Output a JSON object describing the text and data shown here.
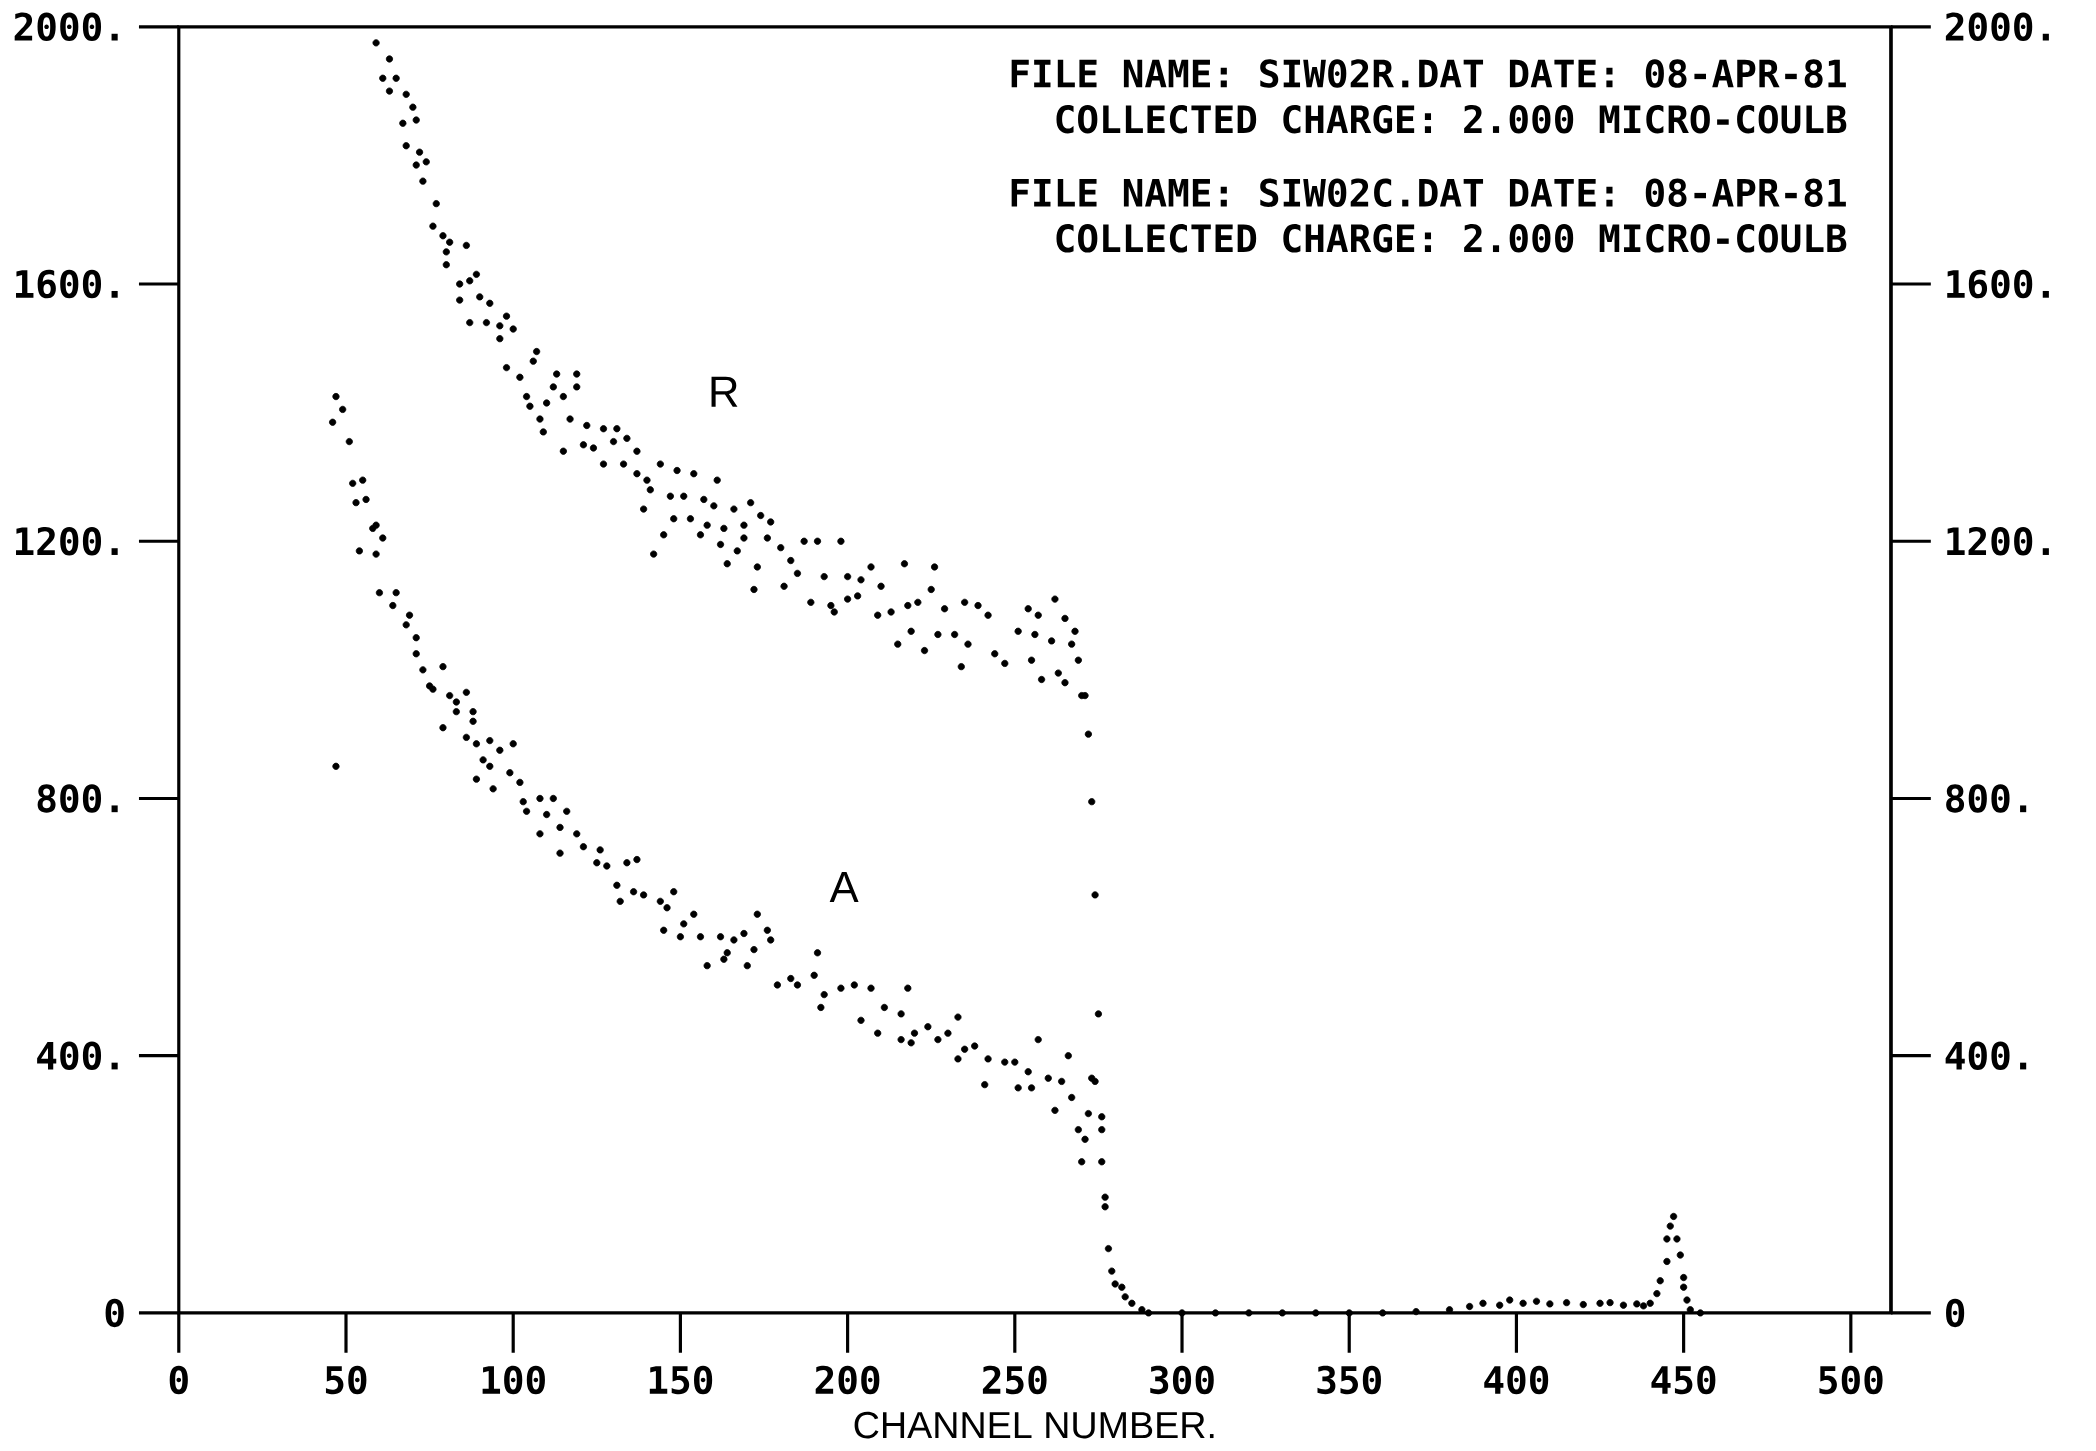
{
  "chart_data": {
    "type": "scatter",
    "xlabel": "CHANNEL NUMBER.",
    "xlim": [
      0,
      512
    ],
    "xticks": [
      0,
      50,
      100,
      150,
      200,
      250,
      300,
      350,
      400,
      450,
      500
    ],
    "ylim": [
      0,
      2000
    ],
    "yticks": [
      0,
      {
        "value": 400,
        "label": "400."
      },
      {
        "value": 800,
        "label": "800."
      },
      {
        "value": 1200,
        "label": "1200."
      },
      {
        "value": 1600,
        "label": "1600."
      },
      {
        "value": 2000,
        "label": "2000."
      }
    ],
    "y2lim": [
      0,
      2000
    ],
    "y2ticks": [
      0,
      {
        "value": 400,
        "label": "400."
      },
      {
        "value": 800,
        "label": "800."
      },
      {
        "value": 1200,
        "label": "1200."
      },
      {
        "value": 1600,
        "label": "1600."
      },
      {
        "value": 2000,
        "label": "2000."
      }
    ],
    "marker": "circle",
    "series": [
      {
        "name": "R",
        "color": "#000000",
        "x": [
          59,
          61,
          63,
          63,
          65,
          67,
          68,
          68,
          70,
          71,
          71,
          72,
          73,
          74,
          76,
          77,
          79,
          80,
          80,
          81,
          84,
          84,
          86,
          87,
          87,
          89,
          90,
          92,
          93,
          96,
          96,
          98,
          98,
          100,
          102,
          104,
          105,
          106,
          107,
          108,
          109,
          110,
          112,
          113,
          115,
          115,
          117,
          119,
          119,
          121,
          122,
          124,
          127,
          127,
          130,
          131,
          133,
          134,
          137,
          137,
          139,
          140,
          141,
          142,
          144,
          145,
          147,
          148,
          149,
          151,
          153,
          154,
          156,
          157,
          158,
          160,
          161,
          162,
          163,
          164,
          166,
          167,
          169,
          169,
          171,
          172,
          173,
          174,
          176,
          177,
          180,
          181,
          183,
          185,
          187,
          189,
          191,
          193,
          195,
          196,
          198,
          200,
          200,
          203,
          204,
          207,
          209,
          210,
          213,
          215,
          217,
          218,
          219,
          221,
          223,
          225,
          226,
          227,
          229,
          232,
          234,
          235,
          236,
          239,
          242,
          244,
          247,
          251,
          254,
          255,
          256,
          257,
          258,
          261,
          262,
          263,
          265,
          265,
          267,
          268,
          269,
          270,
          271,
          272,
          273,
          274,
          275
        ],
        "values": [
          1975,
          1920,
          1950,
          1900,
          1920,
          1850,
          1815,
          1895,
          1875,
          1855,
          1785,
          1805,
          1760,
          1790,
          1690,
          1725,
          1675,
          1650,
          1630,
          1665,
          1600,
          1575,
          1660,
          1605,
          1540,
          1615,
          1580,
          1540,
          1570,
          1535,
          1515,
          1550,
          1470,
          1530,
          1455,
          1425,
          1410,
          1480,
          1495,
          1390,
          1370,
          1415,
          1440,
          1460,
          1425,
          1340,
          1390,
          1440,
          1460,
          1350,
          1380,
          1345,
          1375,
          1320,
          1355,
          1375,
          1320,
          1360,
          1340,
          1305,
          1250,
          1295,
          1280,
          1180,
          1320,
          1210,
          1270,
          1235,
          1310,
          1270,
          1235,
          1305,
          1210,
          1265,
          1225,
          1255,
          1295,
          1195,
          1220,
          1165,
          1250,
          1185,
          1205,
          1225,
          1260,
          1125,
          1160,
          1240,
          1205,
          1230,
          1190,
          1130,
          1170,
          1150,
          1200,
          1105,
          1200,
          1145,
          1100,
          1090,
          1200,
          1110,
          1145,
          1115,
          1140,
          1160,
          1085,
          1130,
          1090,
          1040,
          1165,
          1100,
          1060,
          1105,
          1030,
          1125,
          1160,
          1055,
          1095,
          1055,
          1005,
          1105,
          1040,
          1100,
          1085,
          1025,
          1010,
          1060,
          1095,
          1015,
          1055,
          1085,
          985,
          1045,
          1110,
          995,
          980,
          1080,
          1040,
          1060,
          1015,
          960,
          960,
          900,
          795,
          650,
          465
        ]
      },
      {
        "name": "A",
        "color": "#000000",
        "x": [
          46,
          47,
          47,
          49,
          51,
          52,
          53,
          54,
          55,
          56,
          58,
          59,
          59,
          60,
          61,
          64,
          65,
          68,
          69,
          71,
          71,
          73,
          75,
          76,
          79,
          79,
          81,
          83,
          83,
          86,
          86,
          88,
          88,
          89,
          89,
          91,
          93,
          93,
          94,
          96,
          99,
          100,
          102,
          103,
          104,
          108,
          108,
          110,
          112,
          114,
          114,
          116,
          119,
          121,
          125,
          126,
          128,
          131,
          132,
          134,
          136,
          137,
          139,
          144,
          145,
          146,
          148,
          150,
          151,
          154,
          156,
          158,
          162,
          163,
          164,
          166,
          169,
          170,
          172,
          173,
          176,
          177,
          179,
          183,
          185,
          190,
          191,
          192,
          193,
          198,
          202,
          204,
          207,
          209,
          211,
          216,
          216,
          218,
          219,
          220,
          224,
          227,
          230,
          233,
          233,
          235,
          238,
          241,
          242,
          247,
          250,
          251,
          254,
          255,
          257,
          260,
          262,
          264,
          266,
          267,
          269,
          270,
          271,
          272,
          273,
          274,
          276,
          276,
          276,
          277,
          277,
          278,
          279,
          280,
          282,
          283,
          285,
          288,
          290,
          300,
          310,
          320,
          330,
          340,
          350,
          360,
          370,
          380,
          386,
          390,
          395,
          398,
          402,
          406,
          410,
          415,
          420,
          425,
          428,
          432,
          436,
          438,
          440,
          442,
          443,
          445,
          445,
          446,
          447,
          448,
          449,
          450,
          450,
          451,
          452,
          455
        ],
        "values": [
          1385,
          1425,
          850,
          1405,
          1355,
          1290,
          1260,
          1185,
          1295,
          1265,
          1220,
          1180,
          1225,
          1120,
          1205,
          1100,
          1120,
          1070,
          1085,
          1050,
          1025,
          1000,
          975,
          970,
          1005,
          910,
          960,
          950,
          935,
          965,
          895,
          935,
          920,
          885,
          830,
          860,
          890,
          850,
          815,
          875,
          840,
          885,
          825,
          795,
          780,
          800,
          745,
          775,
          800,
          755,
          715,
          780,
          745,
          725,
          700,
          720,
          695,
          665,
          640,
          700,
          655,
          705,
          650,
          640,
          595,
          630,
          655,
          585,
          605,
          620,
          585,
          540,
          585,
          550,
          560,
          580,
          590,
          540,
          565,
          620,
          595,
          580,
          510,
          520,
          510,
          525,
          560,
          475,
          495,
          505,
          510,
          455,
          505,
          435,
          475,
          465,
          425,
          505,
          420,
          435,
          445,
          425,
          435,
          395,
          460,
          410,
          415,
          355,
          395,
          390,
          390,
          350,
          375,
          350,
          425,
          365,
          315,
          360,
          400,
          335,
          285,
          235,
          270,
          310,
          365,
          360,
          305,
          285,
          235,
          180,
          165,
          100,
          65,
          45,
          40,
          25,
          15,
          5,
          0,
          0,
          0,
          0,
          0,
          0,
          0,
          0,
          2,
          5,
          10,
          15,
          12,
          20,
          15,
          18,
          14,
          16,
          13,
          15,
          16,
          12,
          14,
          11,
          15,
          30,
          50,
          80,
          115,
          135,
          150,
          115,
          90,
          55,
          40,
          20,
          5,
          0
        ]
      }
    ],
    "annotations": [
      "FILE NAME: SIW02R.DAT DATE: 08-APR-81",
      "COLLECTED CHARGE: 2.000 MICRO-COULB",
      "FILE NAME: SIW02C.DAT DATE: 08-APR-81",
      "COLLECTED CHARGE: 2.000 MICRO-COULB"
    ]
  }
}
